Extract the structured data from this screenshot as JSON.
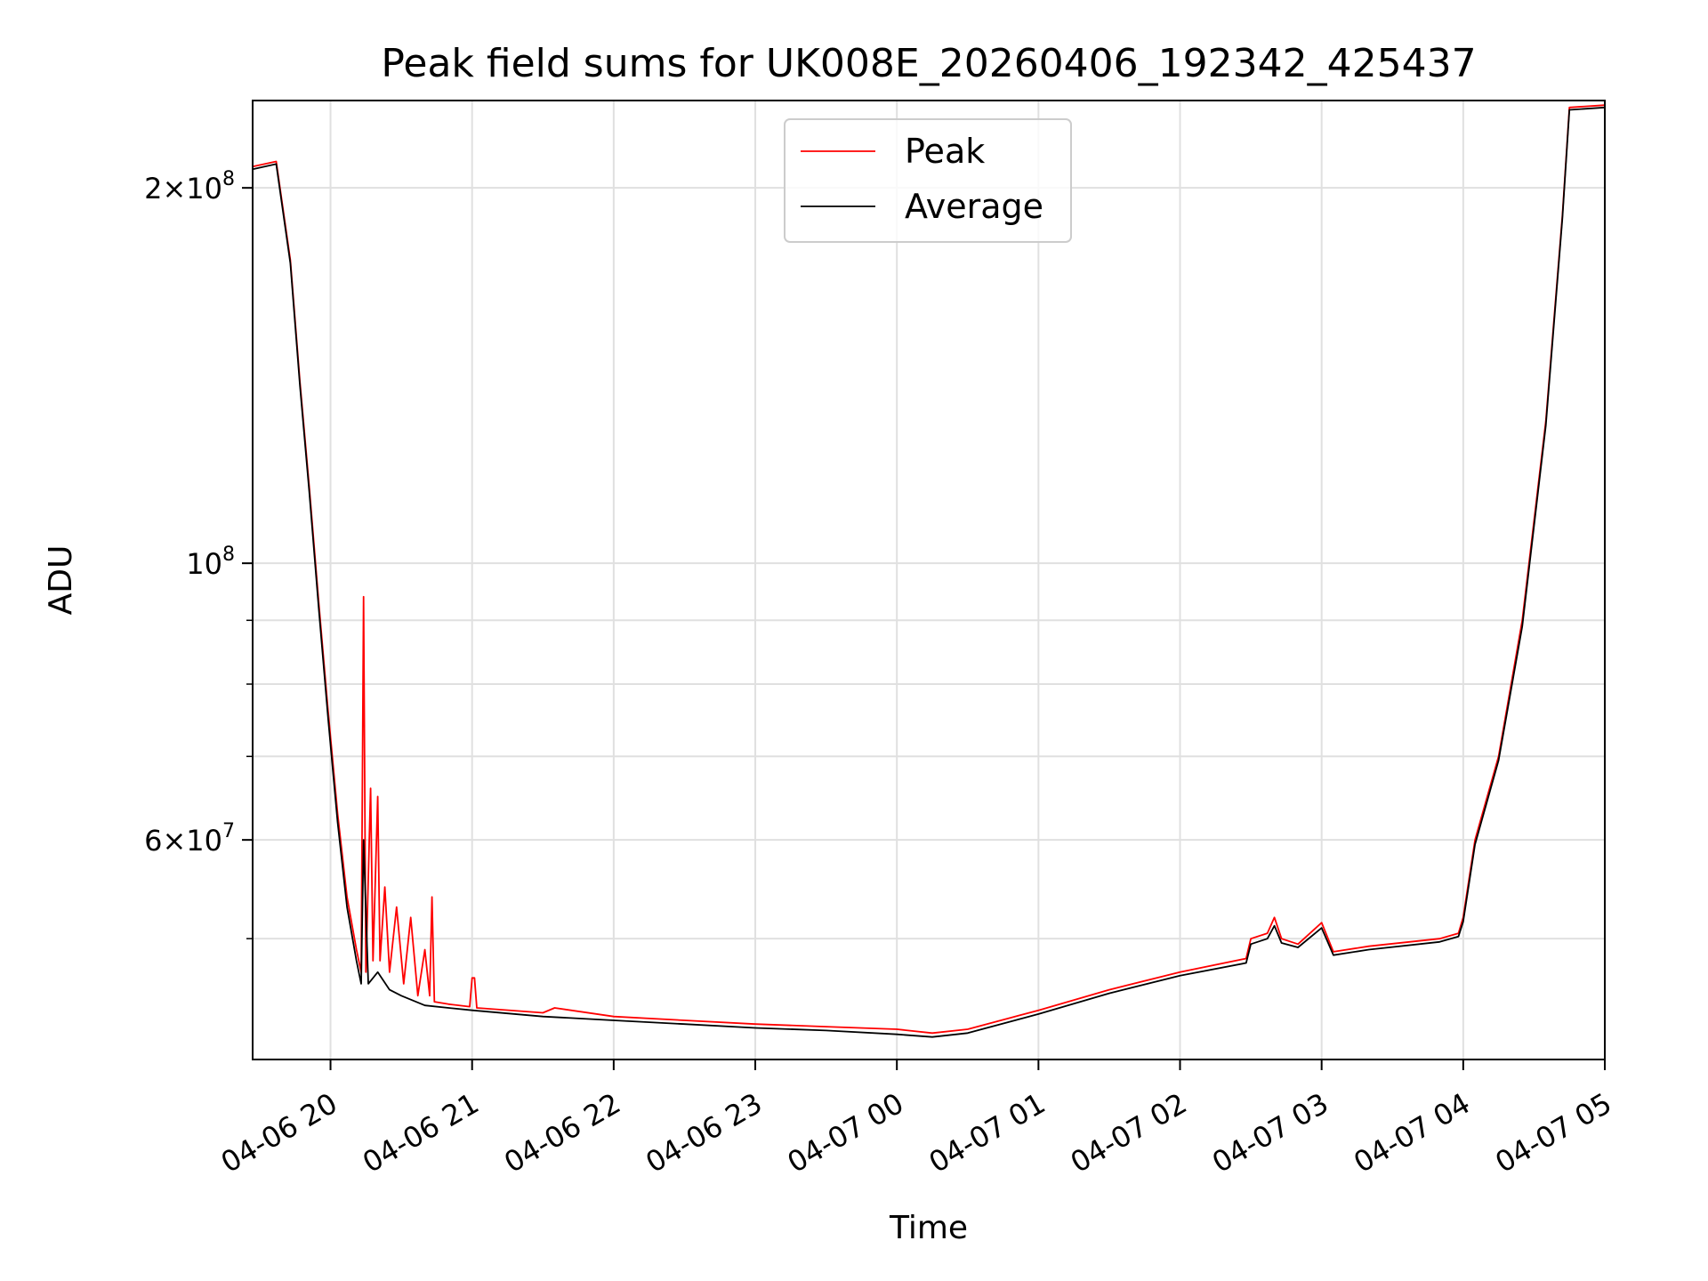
{
  "chart_data": {
    "type": "line",
    "title": "Peak field sums for UK008E_20260406_192342_425437",
    "xlabel": "Time",
    "ylabel": "ADU",
    "yscale": "log",
    "grid": true,
    "legend_position": "upper center",
    "xlim": [
      "2026-04-06 19:27",
      "2026-04-07 05:00"
    ],
    "ylim": [
      40000000.0,
      235000000.0
    ],
    "x_ticks": [
      {
        "value": "2026-04-06 20:00",
        "label": "04-06 20"
      },
      {
        "value": "2026-04-06 21:00",
        "label": "04-06 21"
      },
      {
        "value": "2026-04-06 22:00",
        "label": "04-06 22"
      },
      {
        "value": "2026-04-06 23:00",
        "label": "04-06 23"
      },
      {
        "value": "2026-04-07 00:00",
        "label": "04-07 00"
      },
      {
        "value": "2026-04-07 01:00",
        "label": "04-07 01"
      },
      {
        "value": "2026-04-07 02:00",
        "label": "04-07 02"
      },
      {
        "value": "2026-04-07 03:00",
        "label": "04-07 03"
      },
      {
        "value": "2026-04-07 04:00",
        "label": "04-07 04"
      },
      {
        "value": "2026-04-07 05:00",
        "label": "04-07 05"
      }
    ],
    "y_ticks_major": [
      {
        "value": 60000000.0,
        "base": "6",
        "exp": "7"
      },
      {
        "value": 100000000.0,
        "base": "",
        "exp": "8"
      },
      {
        "value": 200000000.0,
        "base": "2",
        "exp": "8"
      }
    ],
    "y_ticks_minor": [
      50000000.0,
      70000000.0,
      80000000.0,
      90000000.0
    ],
    "series": [
      {
        "name": "Peak",
        "color": "#ff0000",
        "x": [
          "2026-04-06 19:27",
          "2026-04-06 19:37",
          "2026-04-06 19:43",
          "2026-04-06 19:47",
          "2026-04-06 19:51",
          "2026-04-06 19:55",
          "2026-04-06 19:59",
          "2026-04-06 20:03",
          "2026-04-06 20:07",
          "2026-04-06 20:11",
          "2026-04-06 20:13",
          "2026-04-06 20:14",
          "2026-04-06 20:15",
          "2026-04-06 20:17",
          "2026-04-06 20:18",
          "2026-04-06 20:20",
          "2026-04-06 20:21",
          "2026-04-06 20:23",
          "2026-04-06 20:25",
          "2026-04-06 20:28",
          "2026-04-06 20:31",
          "2026-04-06 20:34",
          "2026-04-06 20:37",
          "2026-04-06 20:40",
          "2026-04-06 20:42",
          "2026-04-06 20:43",
          "2026-04-06 20:44",
          "2026-04-06 20:50",
          "2026-04-06 20:59",
          "2026-04-06 21:00",
          "2026-04-06 21:01",
          "2026-04-06 21:02",
          "2026-04-06 21:30",
          "2026-04-06 21:35",
          "2026-04-06 22:00",
          "2026-04-06 22:30",
          "2026-04-06 23:00",
          "2026-04-06 23:30",
          "2026-04-07 00:00",
          "2026-04-07 00:15",
          "2026-04-07 00:30",
          "2026-04-07 01:00",
          "2026-04-07 01:30",
          "2026-04-07 02:00",
          "2026-04-07 02:28",
          "2026-04-07 02:30",
          "2026-04-07 02:37",
          "2026-04-07 02:40",
          "2026-04-07 02:43",
          "2026-04-07 02:50",
          "2026-04-07 03:00",
          "2026-04-07 03:05",
          "2026-04-07 03:20",
          "2026-04-07 03:50",
          "2026-04-07 03:58",
          "2026-04-07 04:00",
          "2026-04-07 04:05",
          "2026-04-07 04:15",
          "2026-04-07 04:25",
          "2026-04-07 04:35",
          "2026-04-07 04:42",
          "2026-04-07 04:45",
          "2026-04-07 05:00"
        ],
        "y": [
          208000000.0,
          210000000.0,
          175000000.0,
          140000000.0,
          115000000.0,
          93000000.0,
          76000000.0,
          63000000.0,
          54000000.0,
          49000000.0,
          47000000.0,
          94000000.0,
          47000000.0,
          66000000.0,
          48000000.0,
          65000000.0,
          48000000.0,
          55000000.0,
          47000000.0,
          53000000.0,
          46000000.0,
          52000000.0,
          45000000.0,
          49000000.0,
          45000000.0,
          54000000.0,
          44500000.0,
          44300000.0,
          44100000.0,
          46500000.0,
          46500000.0,
          44000000.0,
          43600000.0,
          44000000.0,
          43300000.0,
          43000000.0,
          42700000.0,
          42500000.0,
          42300000.0,
          42000000.0,
          42300000.0,
          43800000.0,
          45500000.0,
          47000000.0,
          48200000.0,
          50000000.0,
          50500000.0,
          52000000.0,
          50000000.0,
          49500000.0,
          51500000.0,
          48800000.0,
          49300000.0,
          50000000.0,
          50500000.0,
          52000000.0,
          60000000.0,
          70000000.0,
          90000000.0,
          130000000.0,
          190000000.0,
          232000000.0,
          233000000.0
        ]
      },
      {
        "name": "Average",
        "color": "#000000",
        "x": [
          "2026-04-06 19:27",
          "2026-04-06 19:37",
          "2026-04-06 19:43",
          "2026-04-06 19:47",
          "2026-04-06 19:51",
          "2026-04-06 19:55",
          "2026-04-06 19:59",
          "2026-04-06 20:03",
          "2026-04-06 20:07",
          "2026-04-06 20:11",
          "2026-04-06 20:13",
          "2026-04-06 20:14",
          "2026-04-06 20:16",
          "2026-04-06 20:20",
          "2026-04-06 20:25",
          "2026-04-06 20:30",
          "2026-04-06 20:40",
          "2026-04-06 20:50",
          "2026-04-06 21:00",
          "2026-04-06 21:30",
          "2026-04-06 22:00",
          "2026-04-06 22:30",
          "2026-04-06 23:00",
          "2026-04-06 23:30",
          "2026-04-07 00:00",
          "2026-04-07 00:15",
          "2026-04-07 00:30",
          "2026-04-07 01:00",
          "2026-04-07 01:30",
          "2026-04-07 02:00",
          "2026-04-07 02:28",
          "2026-04-07 02:30",
          "2026-04-07 02:37",
          "2026-04-07 02:40",
          "2026-04-07 02:43",
          "2026-04-07 02:50",
          "2026-04-07 03:00",
          "2026-04-07 03:05",
          "2026-04-07 03:20",
          "2026-04-07 03:50",
          "2026-04-07 03:58",
          "2026-04-07 04:00",
          "2026-04-07 04:05",
          "2026-04-07 04:15",
          "2026-04-07 04:25",
          "2026-04-07 04:35",
          "2026-04-07 04:42",
          "2026-04-07 04:45",
          "2026-04-07 05:00"
        ],
        "y": [
          207000000.0,
          209000000.0,
          174000000.0,
          139000000.0,
          114000000.0,
          92000000.0,
          75000000.0,
          62000000.0,
          53000000.0,
          48000000.0,
          46000000.0,
          60000000.0,
          46000000.0,
          47000000.0,
          45500000.0,
          45000000.0,
          44200000.0,
          44000000.0,
          43800000.0,
          43300000.0,
          43000000.0,
          42700000.0,
          42400000.0,
          42200000.0,
          41900000.0,
          41700000.0,
          42000000.0,
          43500000.0,
          45200000.0,
          46700000.0,
          47800000.0,
          49500000.0,
          50000000.0,
          51200000.0,
          49600000.0,
          49200000.0,
          51000000.0,
          48500000.0,
          49000000.0,
          49700000.0,
          50200000.0,
          51600000.0,
          59500000.0,
          69500000.0,
          89000000.0,
          129000000.0,
          189000000.0,
          231000000.0,
          232000000.0
        ]
      }
    ]
  }
}
